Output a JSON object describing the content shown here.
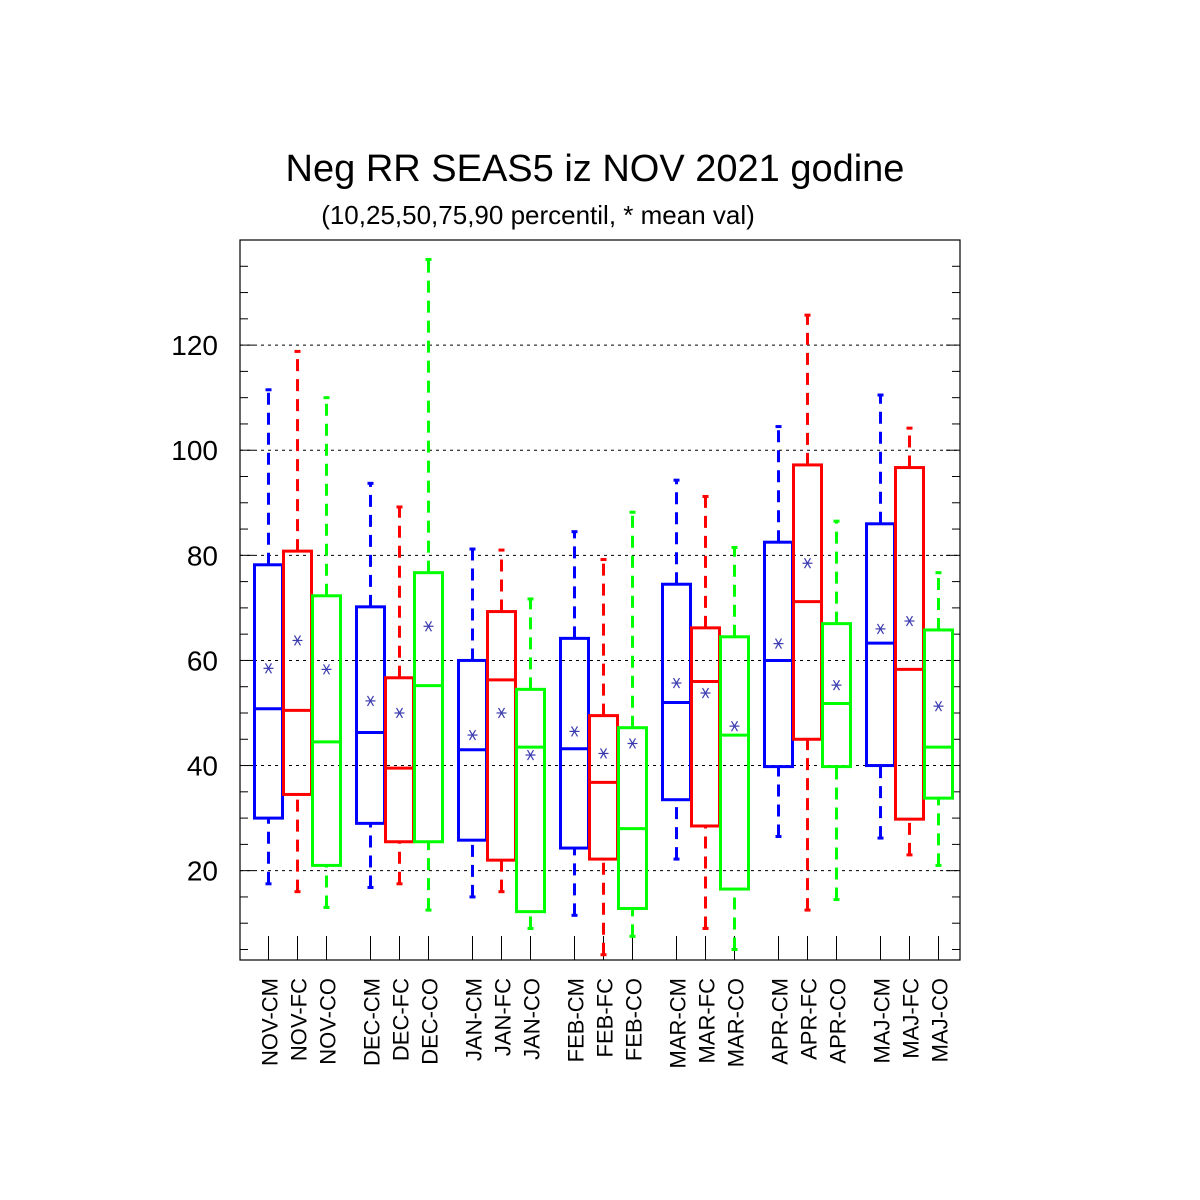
{
  "chart_data": {
    "type": "boxplot",
    "title": "Neg RR SEAS5 iz NOV 2021 godine",
    "subtitle": "(10,25,50,75,90 percentil, * mean val)",
    "ylim": [
      3,
      140
    ],
    "yticks": [
      20,
      40,
      60,
      80,
      100,
      120
    ],
    "grid": "horizontal-dashed",
    "colors": {
      "CM": "#0000ff",
      "FC": "#ff0000",
      "CO": "#00ff00",
      "mean_marker": "#3b3bb0"
    },
    "boxes": [
      {
        "label": "NOV-CM",
        "group": "CM",
        "p10": 17.5,
        "p25": 30,
        "p50": 50.8,
        "p75": 78.2,
        "p90": 111.5,
        "mean": 58.5
      },
      {
        "label": "NOV-FC",
        "group": "FC",
        "p10": 16,
        "p25": 34.5,
        "p50": 50.5,
        "p75": 80.8,
        "p90": 118.8,
        "mean": 63.8
      },
      {
        "label": "NOV-CO",
        "group": "CO",
        "p10": 13,
        "p25": 21,
        "p50": 44.5,
        "p75": 72.3,
        "p90": 110,
        "mean": 58.3
      },
      {
        "label": "DEC-CM",
        "group": "CM",
        "p10": 16.8,
        "p25": 29,
        "p50": 46.3,
        "p75": 70.2,
        "p90": 93.7,
        "mean": 52.3
      },
      {
        "label": "DEC-FC",
        "group": "FC",
        "p10": 17.5,
        "p25": 25.5,
        "p50": 39.5,
        "p75": 56.7,
        "p90": 89.2,
        "mean": 50
      },
      {
        "label": "DEC-CO",
        "group": "CO",
        "p10": 12.5,
        "p25": 25.5,
        "p50": 55.2,
        "p75": 76.7,
        "p90": 136.3,
        "mean": 66.5
      },
      {
        "label": "JAN-CM",
        "group": "CM",
        "p10": 15,
        "p25": 25.8,
        "p50": 43,
        "p75": 60,
        "p90": 81.2,
        "mean": 45.8
      },
      {
        "label": "JAN-FC",
        "group": "FC",
        "p10": 16,
        "p25": 22,
        "p50": 56.3,
        "p75": 69.3,
        "p90": 81,
        "mean": 50
      },
      {
        "label": "JAN-CO",
        "group": "CO",
        "p10": 9,
        "p25": 12.2,
        "p50": 43.5,
        "p75": 54.5,
        "p90": 71.7,
        "mean": 42
      },
      {
        "label": "FEB-CM",
        "group": "CM",
        "p10": 11.5,
        "p25": 24.3,
        "p50": 43.2,
        "p75": 64.2,
        "p90": 84.5,
        "mean": 46.5
      },
      {
        "label": "FEB-FC",
        "group": "FC",
        "p10": 4,
        "p25": 22.2,
        "p50": 36.8,
        "p75": 49.5,
        "p90": 79.2,
        "mean": 42.3
      },
      {
        "label": "FEB-CO",
        "group": "CO",
        "p10": 7.5,
        "p25": 12.8,
        "p50": 28,
        "p75": 47.2,
        "p90": 88.2,
        "mean": 44.2
      },
      {
        "label": "MAR-CM",
        "group": "CM",
        "p10": 22.2,
        "p25": 33.5,
        "p50": 52,
        "p75": 74.5,
        "p90": 94.3,
        "mean": 55.7
      },
      {
        "label": "MAR-FC",
        "group": "FC",
        "p10": 9,
        "p25": 28.5,
        "p50": 56,
        "p75": 66.2,
        "p90": 91.2,
        "mean": 53.8
      },
      {
        "label": "MAR-CO",
        "group": "CO",
        "p10": 5,
        "p25": 16.5,
        "p50": 45.8,
        "p75": 64.5,
        "p90": 81.5,
        "mean": 47.5
      },
      {
        "label": "APR-CM",
        "group": "CM",
        "p10": 26.5,
        "p25": 39.8,
        "p50": 60,
        "p75": 82.5,
        "p90": 104.5,
        "mean": 63.2
      },
      {
        "label": "APR-FC",
        "group": "FC",
        "p10": 12.5,
        "p25": 45,
        "p50": 71.2,
        "p75": 97.2,
        "p90": 125.7,
        "mean": 78.5
      },
      {
        "label": "APR-CO",
        "group": "CO",
        "p10": 14.5,
        "p25": 39.8,
        "p50": 51.8,
        "p75": 67,
        "p90": 86.5,
        "mean": 55.3
      },
      {
        "label": "MAJ-CM",
        "group": "CM",
        "p10": 26.2,
        "p25": 40,
        "p50": 63.3,
        "p75": 86,
        "p90": 110.5,
        "mean": 66
      },
      {
        "label": "MAJ-FC",
        "group": "FC",
        "p10": 23,
        "p25": 29.8,
        "p50": 58.3,
        "p75": 96.7,
        "p90": 104.2,
        "mean": 67.5
      },
      {
        "label": "MAJ-CO",
        "group": "CO",
        "p10": 21,
        "p25": 33.8,
        "p50": 43.5,
        "p75": 65.8,
        "p90": 76.7,
        "mean": 51.3
      }
    ]
  }
}
